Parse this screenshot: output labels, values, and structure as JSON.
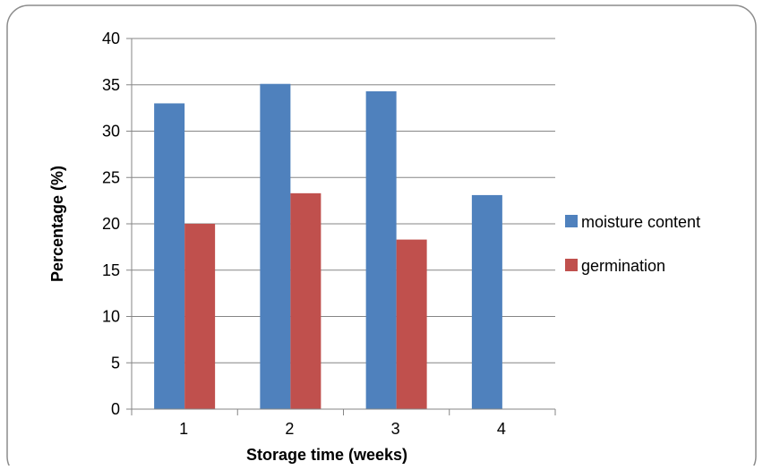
{
  "chart_data": {
    "type": "bar",
    "title": "",
    "xlabel": "Storage time (weeks)",
    "ylabel": "Percentage (%)",
    "categories": [
      "1",
      "2",
      "3",
      "4"
    ],
    "series": [
      {
        "name": "moisture content",
        "color": "#4F81BD",
        "values": [
          33,
          35.1,
          34.3,
          23.1
        ]
      },
      {
        "name": "germination",
        "color": "#C0504D",
        "values": [
          20,
          23.3,
          18.3,
          null
        ]
      }
    ],
    "ylim": [
      0,
      40
    ],
    "yticks": [
      0,
      5,
      10,
      15,
      20,
      25,
      30,
      35,
      40
    ],
    "grid": true,
    "legend_position": "right"
  }
}
